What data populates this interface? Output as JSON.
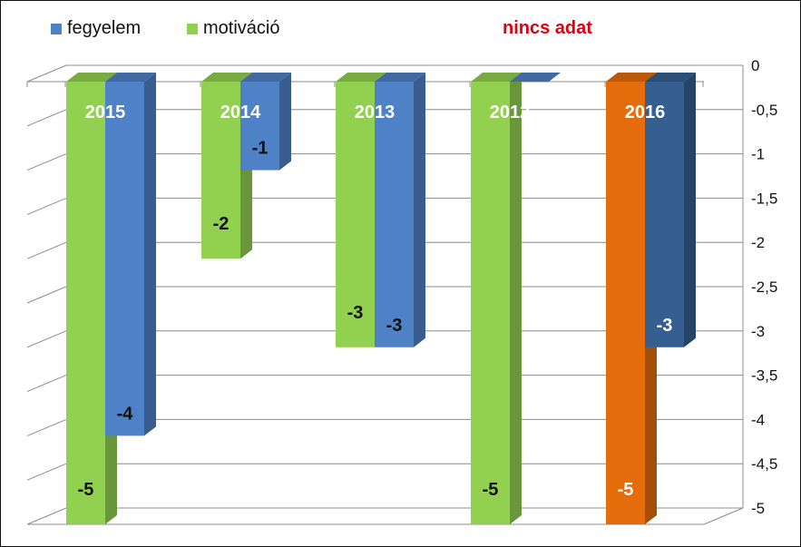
{
  "colors": {
    "fegyelem": "#4f81c6",
    "motivacio": "#92d050",
    "orange": "#e46c0a",
    "dark_blue": "#355f91",
    "note": "#e0000f"
  },
  "legend": {
    "fegyelem": "fegyelem",
    "motivacio": "motiváció"
  },
  "note": "nincs adat",
  "chart_data": {
    "type": "bar",
    "categories": [
      "2015",
      "2014",
      "2013",
      "2012",
      "2016"
    ],
    "series": [
      {
        "name": "motiváció",
        "values": [
          -5,
          -2,
          -3,
          -5,
          -5
        ]
      },
      {
        "name": "fegyelem",
        "values": [
          -4,
          -1,
          -3,
          null,
          -3
        ]
      }
    ],
    "labels": {
      "motivacio": [
        "-5",
        "-2",
        "-3",
        "-5",
        "-5"
      ],
      "fegyelem": [
        "-4",
        "-1",
        "-3",
        "",
        "-3"
      ]
    },
    "ylim": [
      -5,
      0
    ],
    "yticks": [
      0,
      -0.5,
      -1,
      -1.5,
      -2,
      -2.5,
      -3,
      -3.5,
      -4,
      -4.5,
      -5
    ],
    "ytick_labels": [
      "0",
      "-0,5",
      "-1",
      "-1,5",
      "-2",
      "-2,5",
      "-3",
      "-3,5",
      "-4",
      "-4,5",
      "-5"
    ],
    "grid": true,
    "legend_position": "top-left"
  }
}
